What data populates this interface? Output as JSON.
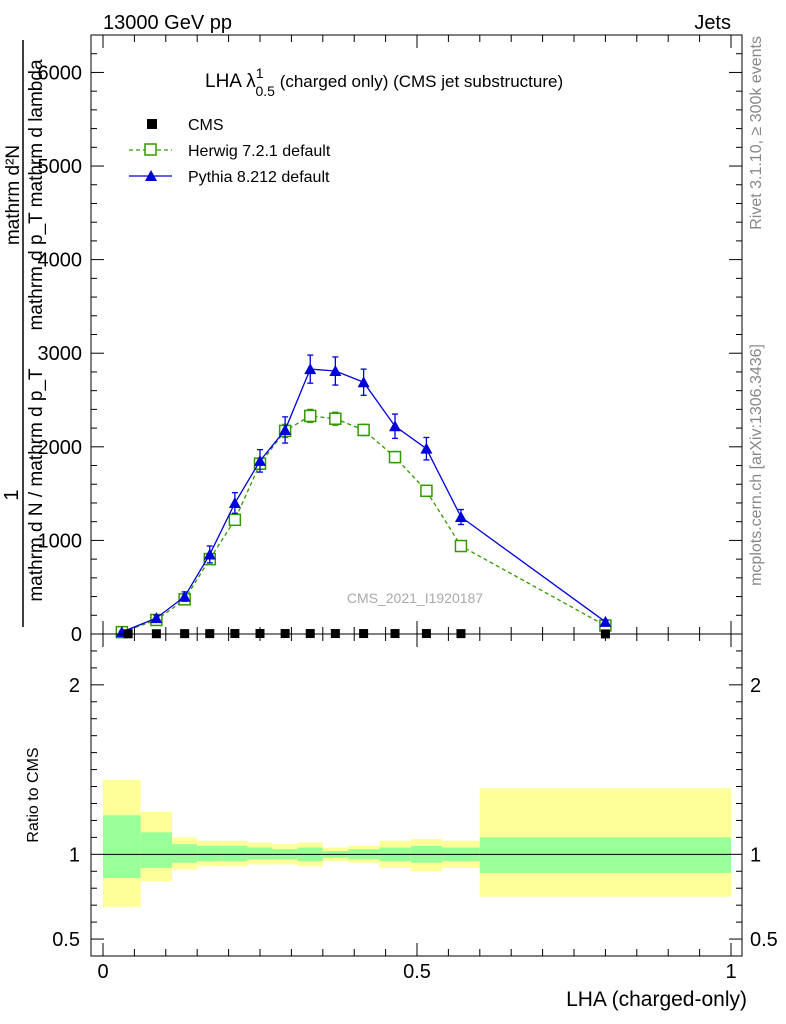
{
  "header": {
    "left": "13000 GeV pp",
    "right": "Jets"
  },
  "side_labels": {
    "rivet": "Rivet 3.1.10, ≥ 300k events",
    "mcplots": "mcplots.cern.ch [arXiv:1306.3436]"
  },
  "watermark": "CMS_2021_I1920187",
  "main_title": {
    "prefix": "LHA λ",
    "sup": "1",
    "sub": "0.5",
    "suffix": " (charged only) (CMS jet substructure)"
  },
  "y_label": {
    "numerator": "1",
    "den_line1": "mathrm d N / mathrm d p",
    "den_sub": "T",
    "den_line2": "mathrm d p",
    "den_sub2": "T",
    "den_line3": " mathrm d lambda",
    "num_line": "mathrm d",
    "num_sup": "2",
    "num_tail": "N"
  },
  "y_label_plain": {
    "top_num": "1",
    "top_den": "mathrm d N / mathrm d p_T",
    "right_num": "mathrm d²N",
    "right_den": "mathrm d p_T mathrm d lambda"
  },
  "x_label": "LHA (charged-only)",
  "ratio_label": "Ratio to CMS",
  "colors": {
    "cms": "#000000",
    "herwig": "#339900",
    "pythia": "#0000dd",
    "band_inner": "#99ff99",
    "band_outer": "#ffff99"
  },
  "chart_data": {
    "type": "line",
    "title": "LHA λ^1_0.5 (charged only) (CMS jet substructure)",
    "xlabel": "LHA (charged-only)",
    "ylabel": "1/(mathrm d N / mathrm d p_T) mathrm d²N / (mathrm d p_T mathrm d lambda)",
    "xlim": [
      0,
      1
    ],
    "ylim": [
      0,
      6400
    ],
    "x_ticks": [
      0,
      0.5,
      1
    ],
    "x_tick_labels": [
      "0",
      "0.5",
      "1"
    ],
    "y_ticks": [
      0,
      1000,
      2000,
      3000,
      4000,
      5000,
      6000
    ],
    "y_tick_labels": [
      "0",
      "1000",
      "2000",
      "3000",
      "4000",
      "5000",
      "6000"
    ],
    "legend_position": "top-left",
    "series": [
      {
        "name": "CMS",
        "style": "marker-square",
        "x": [
          0.04,
          0.085,
          0.13,
          0.17,
          0.21,
          0.25,
          0.29,
          0.33,
          0.37,
          0.415,
          0.465,
          0.515,
          0.57,
          0.8
        ],
        "values": [
          2,
          3,
          4,
          4,
          5,
          5,
          5,
          5,
          5,
          5,
          5,
          5,
          4,
          1
        ]
      },
      {
        "name": "Herwig 7.2.1 default",
        "style": "dashed-open-square",
        "x": [
          0.03,
          0.085,
          0.13,
          0.17,
          0.21,
          0.25,
          0.29,
          0.33,
          0.37,
          0.415,
          0.465,
          0.515,
          0.57,
          0.8
        ],
        "values": [
          20,
          150,
          370,
          800,
          1220,
          1820,
          2170,
          2330,
          2300,
          2180,
          1890,
          1530,
          940,
          90
        ],
        "errors": [
          5,
          15,
          25,
          40,
          50,
          60,
          70,
          70,
          70,
          60,
          60,
          50,
          40,
          10
        ]
      },
      {
        "name": "Pythia 8.212 default",
        "style": "solid-filled-triangle",
        "x": [
          0.03,
          0.085,
          0.13,
          0.17,
          0.21,
          0.25,
          0.29,
          0.33,
          0.37,
          0.415,
          0.465,
          0.515,
          0.57,
          0.8
        ],
        "values": [
          20,
          170,
          400,
          850,
          1400,
          1850,
          2180,
          2830,
          2810,
          2690,
          2220,
          1980,
          1250,
          130
        ],
        "errors": [
          10,
          30,
          50,
          90,
          110,
          120,
          140,
          150,
          150,
          140,
          130,
          120,
          80,
          20
        ]
      }
    ],
    "ratio_panel": {
      "ylabel": "Ratio to CMS",
      "ylim": [
        0.4,
        2.3
      ],
      "y_ticks": [
        0.5,
        1,
        2
      ],
      "y_tick_labels": [
        "0.5",
        "1",
        "2"
      ],
      "reference": 1,
      "bins": [
        {
          "lo": 0.0,
          "hi": 0.06,
          "inner": [
            0.86,
            1.23
          ],
          "outer": [
            0.69,
            1.44
          ]
        },
        {
          "lo": 0.06,
          "hi": 0.11,
          "inner": [
            0.92,
            1.13
          ],
          "outer": [
            0.84,
            1.25
          ]
        },
        {
          "lo": 0.11,
          "hi": 0.15,
          "inner": [
            0.95,
            1.06
          ],
          "outer": [
            0.91,
            1.1
          ]
        },
        {
          "lo": 0.15,
          "hi": 0.19,
          "inner": [
            0.96,
            1.05
          ],
          "outer": [
            0.93,
            1.08
          ]
        },
        {
          "lo": 0.19,
          "hi": 0.23,
          "inner": [
            0.96,
            1.05
          ],
          "outer": [
            0.93,
            1.08
          ]
        },
        {
          "lo": 0.23,
          "hi": 0.27,
          "inner": [
            0.97,
            1.04
          ],
          "outer": [
            0.94,
            1.07
          ]
        },
        {
          "lo": 0.27,
          "hi": 0.31,
          "inner": [
            0.97,
            1.03
          ],
          "outer": [
            0.94,
            1.06
          ]
        },
        {
          "lo": 0.31,
          "hi": 0.35,
          "inner": [
            0.96,
            1.04
          ],
          "outer": [
            0.93,
            1.07
          ]
        },
        {
          "lo": 0.35,
          "hi": 0.39,
          "inner": [
            0.98,
            1.02
          ],
          "outer": [
            0.96,
            1.04
          ]
        },
        {
          "lo": 0.39,
          "hi": 0.44,
          "inner": [
            0.97,
            1.03
          ],
          "outer": [
            0.95,
            1.05
          ]
        },
        {
          "lo": 0.44,
          "hi": 0.49,
          "inner": [
            0.96,
            1.04
          ],
          "outer": [
            0.92,
            1.08
          ]
        },
        {
          "lo": 0.49,
          "hi": 0.54,
          "inner": [
            0.95,
            1.05
          ],
          "outer": [
            0.9,
            1.09
          ]
        },
        {
          "lo": 0.54,
          "hi": 0.6,
          "inner": [
            0.96,
            1.04
          ],
          "outer": [
            0.92,
            1.08
          ]
        },
        {
          "lo": 0.6,
          "hi": 1.0,
          "inner": [
            0.89,
            1.1
          ],
          "outer": [
            0.75,
            1.39
          ]
        }
      ]
    }
  }
}
